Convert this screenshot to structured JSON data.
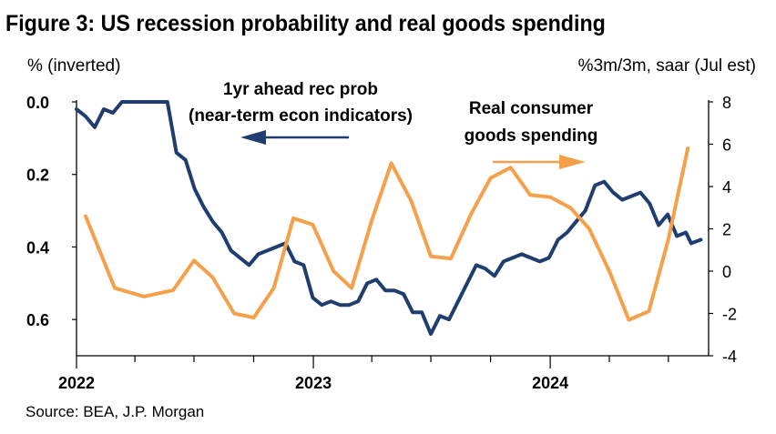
{
  "title": "Figure 3: US recession probability and real goods spending",
  "left_axis_label": "% (inverted)",
  "right_axis_label": "%3m/3m, saar (Jul est)",
  "source": "Source: BEA, J.P. Morgan",
  "colors": {
    "navy": "#1f3d6e",
    "orange": "#f5a04a",
    "axis": "#000000"
  },
  "chart_data": {
    "type": "line",
    "x_ticks": [
      "2022",
      "2023",
      "2024"
    ],
    "xlim": [
      "2022-01",
      "2024-09"
    ],
    "left_axis": {
      "ylim": [
        0.0,
        0.7
      ],
      "inverted": true,
      "tick_labels": [
        "0.0",
        "0.2",
        "0.4",
        "0.6"
      ],
      "tick_values": [
        0.0,
        0.2,
        0.4,
        0.6
      ]
    },
    "right_axis": {
      "ylim": [
        -4,
        8
      ],
      "tick_labels": [
        "8",
        "6",
        "4",
        "2",
        "0",
        "-2",
        "-4"
      ],
      "tick_values": [
        8,
        6,
        4,
        2,
        0,
        -2,
        -4
      ]
    },
    "annotations": [
      {
        "lines": [
          "1yr ahead rec prob",
          "(near-term econ indicators)"
        ],
        "arrow": "left"
      },
      {
        "lines": [
          "Real consumer",
          "goods spending"
        ],
        "arrow": "right"
      }
    ],
    "series": [
      {
        "axis": "left",
        "color": "#1f3d6e",
        "points": [
          [
            "2022-01-01",
            0.02
          ],
          [
            "2022-01-15",
            0.04
          ],
          [
            "2022-01-29",
            0.07
          ],
          [
            "2022-02-12",
            0.02
          ],
          [
            "2022-02-26",
            0.03
          ],
          [
            "2022-03-12",
            0.0
          ],
          [
            "2022-03-26",
            0.0
          ],
          [
            "2022-04-09",
            0.0
          ],
          [
            "2022-04-23",
            0.0
          ],
          [
            "2022-05-07",
            0.0
          ],
          [
            "2022-05-21",
            0.0
          ],
          [
            "2022-06-04",
            0.14
          ],
          [
            "2022-06-18",
            0.16
          ],
          [
            "2022-07-02",
            0.24
          ],
          [
            "2022-07-16",
            0.29
          ],
          [
            "2022-07-30",
            0.33
          ],
          [
            "2022-08-13",
            0.36
          ],
          [
            "2022-08-27",
            0.41
          ],
          [
            "2022-09-10",
            0.43
          ],
          [
            "2022-09-24",
            0.45
          ],
          [
            "2022-10-08",
            0.42
          ],
          [
            "2022-10-22",
            0.41
          ],
          [
            "2022-11-05",
            0.4
          ],
          [
            "2022-11-19",
            0.39
          ],
          [
            "2022-12-03",
            0.44
          ],
          [
            "2022-12-17",
            0.45
          ],
          [
            "2022-12-31",
            0.54
          ],
          [
            "2023-01-14",
            0.56
          ],
          [
            "2023-01-28",
            0.55
          ],
          [
            "2023-02-11",
            0.56
          ],
          [
            "2023-02-25",
            0.56
          ],
          [
            "2023-03-11",
            0.55
          ],
          [
            "2023-03-25",
            0.5
          ],
          [
            "2023-04-08",
            0.49
          ],
          [
            "2023-04-22",
            0.52
          ],
          [
            "2023-05-06",
            0.52
          ],
          [
            "2023-05-20",
            0.53
          ],
          [
            "2023-06-03",
            0.58
          ],
          [
            "2023-06-17",
            0.58
          ],
          [
            "2023-07-01",
            0.64
          ],
          [
            "2023-07-15",
            0.59
          ],
          [
            "2023-07-29",
            0.6
          ],
          [
            "2023-08-12",
            0.55
          ],
          [
            "2023-08-26",
            0.5
          ],
          [
            "2023-09-09",
            0.45
          ],
          [
            "2023-09-23",
            0.46
          ],
          [
            "2023-10-07",
            0.48
          ],
          [
            "2023-10-21",
            0.44
          ],
          [
            "2023-11-04",
            0.43
          ],
          [
            "2023-11-18",
            0.42
          ],
          [
            "2023-12-02",
            0.43
          ],
          [
            "2023-12-16",
            0.44
          ],
          [
            "2023-12-30",
            0.43
          ],
          [
            "2024-01-13",
            0.38
          ],
          [
            "2024-01-27",
            0.36
          ],
          [
            "2024-02-10",
            0.33
          ],
          [
            "2024-02-24",
            0.3
          ],
          [
            "2024-03-10",
            0.23
          ],
          [
            "2024-03-24",
            0.22
          ],
          [
            "2024-04-07",
            0.25
          ],
          [
            "2024-04-21",
            0.27
          ],
          [
            "2024-05-05",
            0.26
          ],
          [
            "2024-05-19",
            0.25
          ],
          [
            "2024-06-02",
            0.28
          ],
          [
            "2024-06-16",
            0.34
          ],
          [
            "2024-06-30",
            0.31
          ],
          [
            "2024-07-14",
            0.37
          ],
          [
            "2024-07-28",
            0.36
          ],
          [
            "2024-08-05",
            0.39
          ],
          [
            "2024-08-20",
            0.38
          ]
        ]
      },
      {
        "axis": "right",
        "color": "#f5a04a",
        "points": [
          [
            "2022-01-15",
            2.6
          ],
          [
            "2022-03-01",
            -0.8
          ],
          [
            "2022-04-15",
            -1.2
          ],
          [
            "2022-05-30",
            -0.9
          ],
          [
            "2022-07-01",
            0.5
          ],
          [
            "2022-07-30",
            -0.3
          ],
          [
            "2022-09-01",
            -2.0
          ],
          [
            "2022-10-01",
            -2.2
          ],
          [
            "2022-11-01",
            -0.8
          ],
          [
            "2022-12-01",
            2.5
          ],
          [
            "2022-12-31",
            2.2
          ],
          [
            "2023-02-01",
            0.0
          ],
          [
            "2023-03-01",
            -0.8
          ],
          [
            "2023-04-01",
            2.4
          ],
          [
            "2023-05-01",
            5.1
          ],
          [
            "2023-06-01",
            3.3
          ],
          [
            "2023-07-01",
            0.7
          ],
          [
            "2023-08-01",
            0.6
          ],
          [
            "2023-09-01",
            2.7
          ],
          [
            "2023-10-01",
            4.4
          ],
          [
            "2023-11-01",
            4.9
          ],
          [
            "2023-12-01",
            3.6
          ],
          [
            "2024-01-01",
            3.5
          ],
          [
            "2024-02-01",
            3.0
          ],
          [
            "2024-03-01",
            2.0
          ],
          [
            "2024-04-01",
            0.0
          ],
          [
            "2024-05-01",
            -2.3
          ],
          [
            "2024-06-01",
            -1.9
          ],
          [
            "2024-07-01",
            1.5
          ],
          [
            "2024-07-31",
            5.8
          ]
        ]
      }
    ]
  }
}
